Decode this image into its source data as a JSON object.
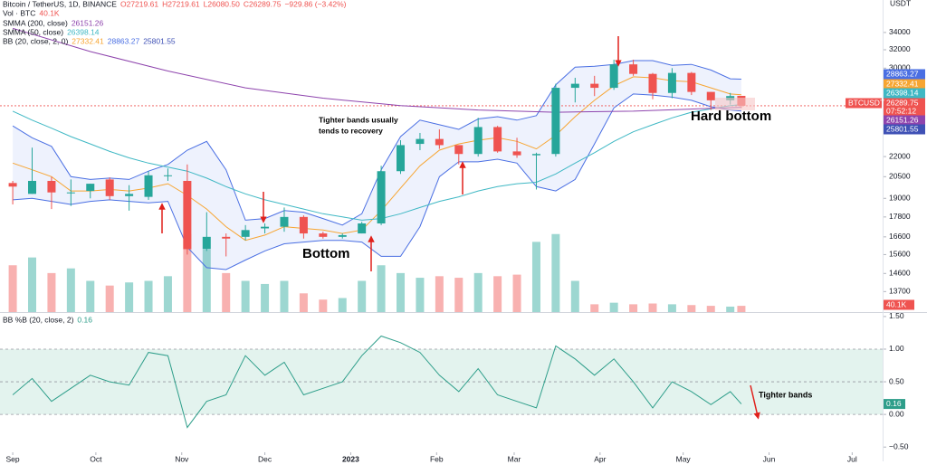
{
  "chart_data": [
    {
      "type": "candlestick",
      "title": "Bitcoin / TetherUS, 1D, BINANCE",
      "ohlc": [
        "O27219.61",
        "H27219.61",
        "L26080.50",
        "C26289.75"
      ],
      "change": "−929.86 (−3.42%)",
      "unit": "USDT",
      "log_scale": true,
      "xlim": [
        -4.6,
        314
      ],
      "ylim": [
        12750,
        38100
      ],
      "yticks": [
        34000,
        32000,
        30000,
        22000,
        20500,
        19000,
        17800,
        16600,
        15600,
        14600,
        13700
      ],
      "up_color": "#26a69a",
      "down_color": "#ef5350",
      "candles": {
        "x": [
          0,
          7,
          14,
          21,
          28,
          35,
          42,
          49,
          56,
          63,
          70,
          77,
          84,
          91,
          98,
          105,
          112,
          119,
          126,
          133,
          140,
          147,
          154,
          161,
          168,
          175,
          182,
          189,
          196,
          203,
          210,
          217,
          224,
          231,
          238,
          245,
          252,
          259,
          263
        ],
        "open": [
          20050,
          19300,
          20200,
          19400,
          19500,
          20300,
          19150,
          19100,
          20600,
          20200,
          15900,
          16600,
          16600,
          17100,
          17200,
          17800,
          16800,
          16600,
          16800,
          17400,
          20900,
          23000,
          23400,
          22900,
          22200,
          24400,
          22400,
          22100,
          22200,
          28000,
          28400,
          28000,
          30400,
          29400,
          27500,
          29500,
          27600,
          26800,
          27219.61
        ],
        "high": [
          20200,
          22700,
          20500,
          20300,
          20000,
          20450,
          19900,
          20900,
          21100,
          21400,
          18100,
          16800,
          17300,
          17400,
          18400,
          17900,
          16900,
          16800,
          17500,
          21300,
          23300,
          23900,
          24200,
          22900,
          25200,
          24500,
          23500,
          22300,
          28400,
          29000,
          29200,
          30900,
          30900,
          29500,
          30000,
          29600,
          27600,
          27500,
          27219.61
        ],
        "low": [
          18600,
          19300,
          18300,
          18500,
          19000,
          18900,
          18200,
          18900,
          20200,
          15600,
          15800,
          15500,
          16400,
          16800,
          16900,
          16500,
          16500,
          16500,
          16800,
          17300,
          20700,
          22500,
          22600,
          21400,
          22000,
          22300,
          21900,
          19600,
          22000,
          26600,
          27200,
          27800,
          29200,
          26900,
          27000,
          27300,
          25900,
          26400,
          26080.5
        ],
        "close": [
          19800,
          20200,
          19400,
          19400,
          20000,
          19150,
          19300,
          20600,
          20600,
          15900,
          16600,
          16500,
          17000,
          17200,
          17800,
          16800,
          16600,
          16700,
          17400,
          20900,
          22900,
          23400,
          22900,
          22200,
          24400,
          22400,
          22100,
          22200,
          28000,
          28400,
          28000,
          30400,
          29400,
          27500,
          29500,
          27600,
          26800,
          27200,
          26289.75
        ]
      },
      "symbol_label": "BTCUSDT",
      "countdown": "07:52:12",
      "volume": {
        "name": "Vol · BTC",
        "last_label": "40.1K",
        "vlim": [
          0,
          2000
        ],
        "values": [
          300,
          350,
          250,
          280,
          200,
          170,
          190,
          200,
          230,
          500,
          400,
          250,
          200,
          180,
          200,
          120,
          80,
          90,
          200,
          300,
          250,
          220,
          230,
          220,
          250,
          230,
          240,
          450,
          500,
          200,
          50,
          60,
          50,
          55,
          50,
          45,
          40,
          35,
          40.1
        ]
      },
      "smma200": {
        "name": "SMMA (200, close)",
        "color": "#8e44ad",
        "x": [
          0,
          28,
          56,
          84,
          112,
          140,
          168,
          196,
          224,
          252,
          263
        ],
        "values": [
          34500,
          31800,
          29700,
          28000,
          27000,
          26300,
          25900,
          25700,
          25800,
          26050,
          26151.26
        ]
      },
      "smma50": {
        "name": "SMMA (50, close)",
        "color": "#3fb8c4",
        "x": [
          0,
          7,
          14,
          21,
          28,
          35,
          42,
          49,
          56,
          63,
          70,
          77,
          84,
          91,
          98,
          105,
          112,
          119,
          126,
          133,
          140,
          147,
          154,
          161,
          168,
          175,
          182,
          189,
          196,
          203,
          210,
          217,
          224,
          231,
          238,
          245,
          252,
          259,
          263
        ],
        "values": [
          25800,
          25000,
          24300,
          23600,
          23000,
          22400,
          21900,
          21500,
          21200,
          20900,
          20400,
          19800,
          19300,
          18900,
          18600,
          18300,
          18000,
          17800,
          17600,
          17700,
          18000,
          18400,
          18800,
          19100,
          19500,
          19800,
          20000,
          20100,
          20700,
          21500,
          22300,
          23200,
          24000,
          24600,
          25200,
          25700,
          26000,
          26300,
          26398.14
        ]
      },
      "bb": {
        "name": "BB (20, close, 2, 0)",
        "basis_color": "#f7a531",
        "upper_color": "#4a6fe3",
        "lower_color": "#3f51b5",
        "fill_color": "#eef2fd",
        "x": [
          0,
          7,
          14,
          21,
          28,
          35,
          42,
          49,
          56,
          63,
          70,
          77,
          84,
          91,
          98,
          105,
          112,
          119,
          126,
          133,
          140,
          147,
          154,
          161,
          168,
          175,
          182,
          189,
          196,
          203,
          210,
          217,
          224,
          231,
          238,
          245,
          252,
          259,
          263
        ],
        "basis": [
          21500,
          21000,
          20500,
          19500,
          19500,
          19600,
          19500,
          19700,
          20000,
          19200,
          18300,
          17200,
          16400,
          16700,
          17200,
          17100,
          17000,
          16800,
          17000,
          18200,
          19700,
          21300,
          22500,
          23000,
          23300,
          23500,
          23200,
          22600,
          23700,
          25300,
          26800,
          28200,
          29100,
          29000,
          28700,
          28600,
          28000,
          27400,
          27332.41
        ],
        "upper": [
          24500,
          23500,
          22800,
          20500,
          20300,
          20400,
          20300,
          20900,
          21400,
          22500,
          23200,
          21000,
          17600,
          17700,
          18200,
          18100,
          17700,
          17300,
          18000,
          21000,
          23600,
          25000,
          24600,
          24200,
          25100,
          25300,
          25000,
          25400,
          28300,
          30100,
          30200,
          30400,
          30800,
          30800,
          30300,
          30400,
          29800,
          28900,
          28863.27
        ],
        "lower": [
          18900,
          19000,
          18800,
          18600,
          18800,
          18900,
          18800,
          18700,
          18800,
          16000,
          14900,
          14800,
          15300,
          15800,
          16200,
          16300,
          16400,
          16400,
          16300,
          15500,
          15500,
          17200,
          20500,
          21600,
          21600,
          21800,
          21500,
          19800,
          19500,
          20300,
          23000,
          26100,
          27400,
          27300,
          27100,
          26800,
          26200,
          25900,
          25801.55
        ]
      },
      "annotations": [
        "Tighter bands usually",
        "tends to recovery",
        "Bottom",
        "Hard bottom"
      ]
    },
    {
      "type": "line",
      "title": "BB %B (20, close, 2)",
      "xlim": [
        -4.6,
        314
      ],
      "ylim": [
        -0.58,
        1.54
      ],
      "yticks": [
        {
          "value": 1.5,
          "label": "1.50"
        },
        {
          "value": 1,
          "label": "1.00"
        },
        {
          "value": 0.5,
          "label": "0.50"
        },
        {
          "value": 0,
          "label": "0.00"
        },
        {
          "value": -0.5,
          "label": "−0.50"
        }
      ],
      "band": [
        0,
        1
      ],
      "band_color": "#e3f3ee",
      "hlines": [
        1,
        0.5,
        0
      ],
      "xticks": [
        {
          "value": 0,
          "label": "Sep"
        },
        {
          "value": 30,
          "label": "Oct"
        },
        {
          "value": 61,
          "label": "Nov"
        },
        {
          "value": 91,
          "label": "Dec"
        },
        {
          "value": 122,
          "label": "2023"
        },
        {
          "value": 153,
          "label": "Feb"
        },
        {
          "value": 181,
          "label": "Mar"
        },
        {
          "value": 212,
          "label": "Apr"
        },
        {
          "value": 242,
          "label": "May"
        },
        {
          "value": 273,
          "label": "Jun"
        },
        {
          "value": 303,
          "label": "Jul"
        }
      ],
      "series": [
        {
          "color": "#2e9e8a",
          "x": [
            0,
            7,
            14,
            21,
            28,
            35,
            42,
            49,
            56,
            63,
            70,
            77,
            84,
            91,
            98,
            105,
            112,
            119,
            126,
            133,
            140,
            147,
            154,
            161,
            168,
            175,
            182,
            189,
            196,
            203,
            210,
            217,
            224,
            231,
            238,
            245,
            252,
            259,
            263
          ],
          "values": [
            0.3,
            0.55,
            0.2,
            0.4,
            0.6,
            0.5,
            0.45,
            0.95,
            0.9,
            -0.2,
            0.2,
            0.3,
            0.9,
            0.6,
            0.8,
            0.3,
            0.4,
            0.5,
            0.9,
            1.2,
            1.1,
            0.95,
            0.6,
            0.35,
            0.7,
            0.3,
            0.2,
            0.1,
            1.05,
            0.85,
            0.6,
            0.85,
            0.5,
            0.1,
            0.5,
            0.35,
            0.15,
            0.35,
            0.16
          ]
        }
      ],
      "annotations": [
        "Tighter bands"
      ]
    }
  ]
}
